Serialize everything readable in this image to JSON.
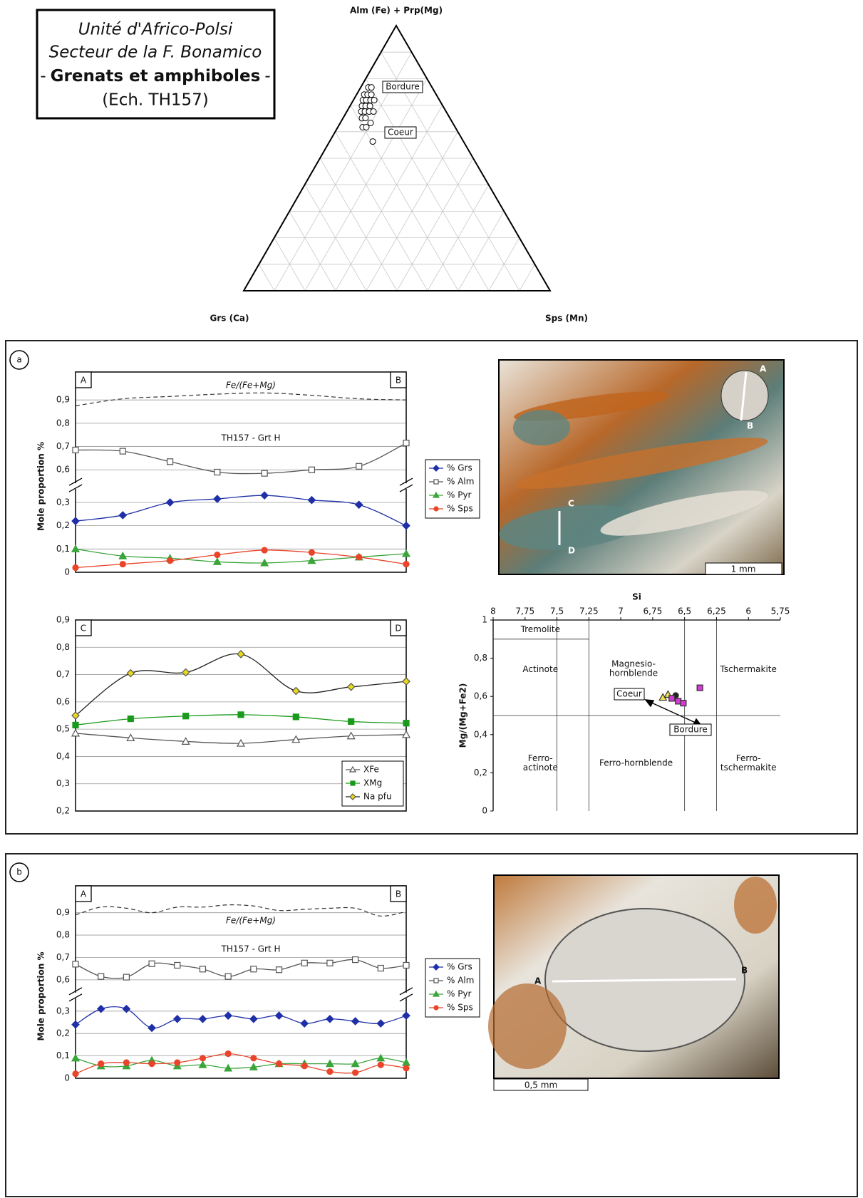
{
  "header": {
    "lines": [
      "Unité d'Africo-Polsi",
      "Secteur de la F. Bonamico"
    ],
    "dash_left": "-",
    "bold": "Grenats et amphiboles",
    "dash_right": "-",
    "sample": "(Ech. TH157)"
  },
  "panels": [
    "a",
    "b"
  ],
  "photos": [
    {
      "labels": [
        "A",
        "B",
        "C",
        "D"
      ],
      "scale": "1 mm"
    },
    {
      "labels": [
        "A",
        "B"
      ],
      "scale": "0,5 mm"
    }
  ],
  "chart_data": [
    {
      "type": "ternary",
      "vertices": {
        "top": "Alm (Fe) + Prp(Mg)",
        "left": "Grs (Ca)",
        "right": "Sps (Mn)"
      },
      "grid_step": 10,
      "points": {
        "alm_prp": [
          76.7,
          76.7,
          74,
          74,
          74,
          71.9,
          71.9,
          71.9,
          71.9,
          69.7,
          69.7,
          69.7,
          67.6,
          67.6,
          67.6,
          67.6,
          65.1,
          65.1,
          63.3,
          61.7,
          61.7,
          56.3
        ],
        "grs": [
          20.8,
          19.8,
          23.5,
          22.4,
          21.2,
          25,
          23.9,
          22.5,
          21.3,
          26.4,
          25.2,
          23.8,
          27.7,
          26.5,
          25.1,
          23.7,
          28.7,
          27.5,
          26.8,
          30.2,
          29,
          29.6
        ],
        "sps": [
          2.5,
          3.5,
          2.5,
          3.6,
          4.8,
          3.1,
          4.2,
          5.6,
          6.8,
          3.9,
          5.1,
          6.5,
          4.7,
          5.9,
          7.3,
          8.7,
          6.2,
          7.3,
          9.9,
          8.1,
          9.3,
          14.1
        ]
      },
      "annotations": [
        "Bordure",
        "Coeur"
      ]
    },
    {
      "type": "line",
      "title": "TH157 - Grt H",
      "ylabel": "Mole proportion %",
      "corner_labels": [
        "A",
        "B"
      ],
      "categories": [
        null,
        null,
        null,
        null,
        null,
        null,
        null,
        null
      ],
      "ylim": [
        0,
        1.02
      ],
      "ybreak": [
        0.37,
        0.53
      ],
      "grid": true,
      "legend": "right",
      "yticks": [
        0,
        {
          "value": 0.1,
          "label": "0,1"
        },
        {
          "value": 0.2,
          "label": "0,2"
        },
        {
          "value": 0.3,
          "label": "0,3"
        },
        {
          "value": 0.6,
          "label": "0,6"
        },
        {
          "value": 0.7,
          "label": "0,7"
        },
        {
          "value": 0.8,
          "label": "0,8"
        },
        {
          "value": 0.9,
          "label": "0,9"
        }
      ],
      "ratio_line": {
        "name": "Fe/(Fe+Mg)",
        "values": [
          0.875,
          0.905,
          0.915,
          0.925,
          0.93,
          0.92,
          0.905,
          0.9
        ]
      },
      "series": [
        {
          "name": "% Grs",
          "color": "#1f2fa8",
          "marker": "diamond",
          "filled": true,
          "values": [
            0.22,
            0.245,
            0.3,
            0.315,
            0.33,
            0.31,
            0.29,
            0.2
          ]
        },
        {
          "name": "% Alm",
          "color": "#555555",
          "marker": "square",
          "filled": false,
          "values": [
            0.685,
            0.68,
            0.635,
            0.59,
            0.585,
            0.6,
            0.615,
            0.715
          ]
        },
        {
          "name": "% Pyr",
          "color": "#3aa53a",
          "marker": "triangle",
          "filled": true,
          "values": [
            0.1,
            0.07,
            0.06,
            0.045,
            0.04,
            0.05,
            0.065,
            0.08
          ]
        },
        {
          "name": "% Sps",
          "color": "#e8452a",
          "marker": "circle",
          "filled": true,
          "values": [
            0.02,
            0.035,
            0.05,
            0.075,
            0.095,
            0.085,
            0.065,
            0.035
          ]
        }
      ]
    },
    {
      "type": "line",
      "corner_labels": [
        "C",
        "D"
      ],
      "categories": [
        null,
        null,
        null,
        null,
        null,
        null,
        null
      ],
      "ylim": [
        0.2,
        0.9
      ],
      "grid": true,
      "legend": "lower right",
      "yticks": [
        {
          "value": 0.2,
          "label": "0,2"
        },
        {
          "value": 0.3,
          "label": "0,3"
        },
        {
          "value": 0.4,
          "label": "0,4"
        },
        {
          "value": 0.5,
          "label": "0,5"
        },
        {
          "value": 0.6,
          "label": "0,6"
        },
        {
          "value": 0.7,
          "label": "0,7"
        },
        {
          "value": 0.8,
          "label": "0,8"
        },
        {
          "value": 0.9,
          "label": "0,9"
        }
      ],
      "series": [
        {
          "name": "XFe",
          "color": "#555555",
          "marker": "triangle",
          "filled": false,
          "values": [
            0.485,
            0.468,
            0.455,
            0.448,
            0.462,
            0.475,
            0.48
          ]
        },
        {
          "name": "XMg",
          "color": "#1a9a1a",
          "marker": "square",
          "filled": true,
          "values": [
            0.515,
            0.538,
            0.548,
            0.553,
            0.545,
            0.528,
            0.522
          ]
        },
        {
          "name": "Na pfu",
          "color": "#e8d81a",
          "marker": "diamond",
          "filled": true,
          "values": [
            0.55,
            0.705,
            0.708,
            0.775,
            0.64,
            0.655,
            0.675
          ]
        }
      ]
    },
    {
      "type": "scatter",
      "xlabel": "Si",
      "ylabel": "Mg/(Mg+Fe2)",
      "xlim": [
        8,
        5.75
      ],
      "ylim": [
        0,
        1
      ],
      "xticks": [
        8,
        {
          "value": 7.75,
          "label": "7,75"
        },
        {
          "value": 7.5,
          "label": "7,5"
        },
        {
          "value": 7.25,
          "label": "7,25"
        },
        7,
        {
          "value": 6.75,
          "label": "6,75"
        },
        {
          "value": 6.5,
          "label": "6,5"
        },
        {
          "value": 6.25,
          "label": "6,25"
        },
        6,
        {
          "value": 5.75,
          "label": "5,75"
        }
      ],
      "yticks": [
        0,
        {
          "value": 0.2,
          "label": "0,2"
        },
        {
          "value": 0.4,
          "label": "0,4"
        },
        {
          "value": 0.6,
          "label": "0,6"
        },
        {
          "value": 0.8,
          "label": "0,8"
        },
        1
      ],
      "dividers_x": [
        7.5,
        7.25,
        6.5,
        6.25
      ],
      "divider_y": 0.5,
      "tremolite_y": 0.9,
      "fields": [
        [
          "Tremolite"
        ],
        [
          "Actinote"
        ],
        [
          "Magnesio-",
          "hornblende"
        ],
        [
          "Tschermakite"
        ],
        [
          "Ferro-",
          "actinote"
        ],
        [
          "Ferro-hornblende"
        ],
        [
          "Ferro-",
          "tschermakite"
        ]
      ],
      "annotations": [
        "Coeur",
        "Bordure"
      ],
      "series": [
        {
          "color": "#f2e64a",
          "marker": "triangle",
          "x": [
            6.67,
            6.63
          ],
          "y": [
            0.595,
            0.61
          ]
        },
        {
          "color": "#222222",
          "marker": "circle",
          "x": [
            6.57
          ],
          "y": [
            0.605
          ]
        },
        {
          "color": "#d23bd2",
          "marker": "square",
          "x": [
            6.6,
            6.55,
            6.51,
            6.38
          ],
          "y": [
            0.59,
            0.575,
            0.565,
            0.645
          ]
        }
      ]
    },
    {
      "type": "line",
      "title": "TH157 - Grt H",
      "ylabel": "Mole proportion %",
      "corner_labels": [
        "A",
        "B"
      ],
      "categories": [
        null,
        null,
        null,
        null,
        null,
        null,
        null,
        null,
        null,
        null,
        null,
        null,
        null,
        null
      ],
      "ylim": [
        0,
        1.02
      ],
      "ybreak": [
        0.37,
        0.53
      ],
      "grid": true,
      "legend": "right",
      "yticks": [
        0,
        {
          "value": 0.1,
          "label": "0,1"
        },
        {
          "value": 0.2,
          "label": "0,2"
        },
        {
          "value": 0.3,
          "label": "0,3"
        },
        {
          "value": 0.6,
          "label": "0,6"
        },
        {
          "value": 0.7,
          "label": "0,7"
        },
        {
          "value": 0.8,
          "label": "0,8"
        },
        {
          "value": 0.9,
          "label": "0,9"
        }
      ],
      "ratio_line": {
        "name": "Fe/(Fe+Mg)",
        "values": [
          0.89,
          0.925,
          0.92,
          0.9,
          0.925,
          0.925,
          0.935,
          0.93,
          0.91,
          0.915,
          0.92,
          0.92,
          0.885,
          0.905
        ]
      },
      "series": [
        {
          "name": "% Grs",
          "color": "#1f2fa8",
          "marker": "diamond",
          "filled": true,
          "values": [
            0.24,
            0.31,
            0.31,
            0.225,
            0.265,
            0.265,
            0.28,
            0.265,
            0.28,
            0.245,
            0.265,
            0.255,
            0.245,
            0.28
          ]
        },
        {
          "name": "% Alm",
          "color": "#555555",
          "marker": "square",
          "filled": false,
          "values": [
            0.67,
            0.615,
            0.612,
            0.672,
            0.665,
            0.648,
            0.615,
            0.648,
            0.645,
            0.675,
            0.675,
            0.69,
            0.652,
            0.665
          ]
        },
        {
          "name": "% Pyr",
          "color": "#3aa53a",
          "marker": "triangle",
          "filled": true,
          "values": [
            0.09,
            0.055,
            0.055,
            0.08,
            0.055,
            0.06,
            0.045,
            0.05,
            0.065,
            0.065,
            0.065,
            0.065,
            0.09,
            0.07
          ]
        },
        {
          "name": "% Sps",
          "color": "#e8452a",
          "marker": "circle",
          "filled": true,
          "values": [
            0.02,
            0.065,
            0.07,
            0.065,
            0.07,
            0.09,
            0.11,
            0.09,
            0.065,
            0.055,
            0.03,
            0.025,
            0.06,
            0.045
          ]
        }
      ]
    }
  ]
}
